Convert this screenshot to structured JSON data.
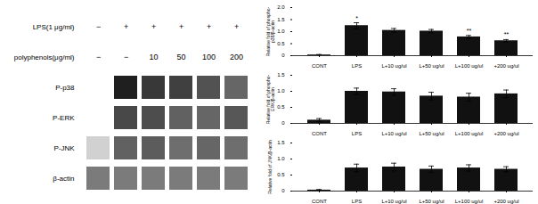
{
  "chart_data": [
    {
      "type": "heatmap",
      "columns": [
        {
          "label": "LPS(1 μg/ml)",
          "values": [
            "−",
            "+",
            "+",
            "+",
            "+",
            "+"
          ]
        },
        {
          "label": "polyphenols(μg/ml)",
          "values": [
            "−",
            "−",
            "10",
            "50",
            "100",
            "200"
          ]
        }
      ],
      "rows": [
        "P-p38",
        "P-ERK",
        "P-JNK",
        "β-actin"
      ],
      "cells": [
        [
          0.0,
          0.88,
          0.78,
          0.75,
          0.68,
          0.6
        ],
        [
          0.0,
          0.72,
          0.7,
          0.62,
          0.6,
          0.66
        ],
        [
          0.18,
          0.62,
          0.64,
          0.57,
          0.6,
          0.57
        ],
        [
          0.52,
          0.52,
          0.52,
          0.52,
          0.52,
          0.52
        ]
      ]
    },
    {
      "type": "bar",
      "ylabel": "Relative fold of phospho-\np38/β-actin",
      "categories": [
        "CONT",
        "LPS",
        "L+10 ug/ul",
        "L+50 ug/ul",
        "L+100 ug/ul",
        "+200 ug/ul"
      ],
      "values": [
        0.03,
        1.25,
        1.05,
        1.02,
        0.78,
        0.62
      ],
      "errors": [
        0.02,
        0.12,
        0.08,
        0.07,
        0.06,
        0.05
      ],
      "annotations": [
        null,
        "*",
        null,
        null,
        "**",
        "**"
      ],
      "color": "#111111",
      "ylim": [
        0,
        2
      ],
      "yticks": [
        0,
        0.5,
        {
          "value": 1,
          "label": "1.0"
        },
        1.5,
        {
          "value": 2,
          "label": "2.0"
        }
      ]
    },
    {
      "type": "bar",
      "ylabel": "Relative fold of phospho-\nERK/β-actin",
      "categories": [
        "CONT",
        "LPS",
        "L+10 ug/ul",
        "L+50 ug/ul",
        "L+100 ug/ul",
        "+200 ug/ul"
      ],
      "values": [
        0.1,
        1.0,
        0.98,
        0.85,
        0.82,
        0.92
      ],
      "errors": [
        0.05,
        0.1,
        0.1,
        0.12,
        0.12,
        0.12
      ],
      "color": "#111111",
      "ylim": [
        0,
        1.5
      ],
      "yticks": [
        0,
        0.5,
        {
          "value": 1,
          "label": "1.0"
        },
        1.5
      ]
    },
    {
      "type": "bar",
      "ylabel": "Relative fold of JNK/β-actin",
      "categories": [
        "CONT",
        "LPS",
        "L+10 ug/ul",
        "L+50 ug/ul",
        "L+100 ug/ul",
        "+200 ug/ul"
      ],
      "values": [
        0.03,
        0.72,
        0.75,
        0.68,
        0.72,
        0.68
      ],
      "errors": [
        0.02,
        0.12,
        0.12,
        0.1,
        0.1,
        0.08
      ],
      "color": "#111111",
      "ylim": [
        0,
        1.5
      ],
      "yticks": [
        0,
        0.5,
        {
          "value": 1,
          "label": "1.0"
        },
        1.5
      ]
    }
  ]
}
